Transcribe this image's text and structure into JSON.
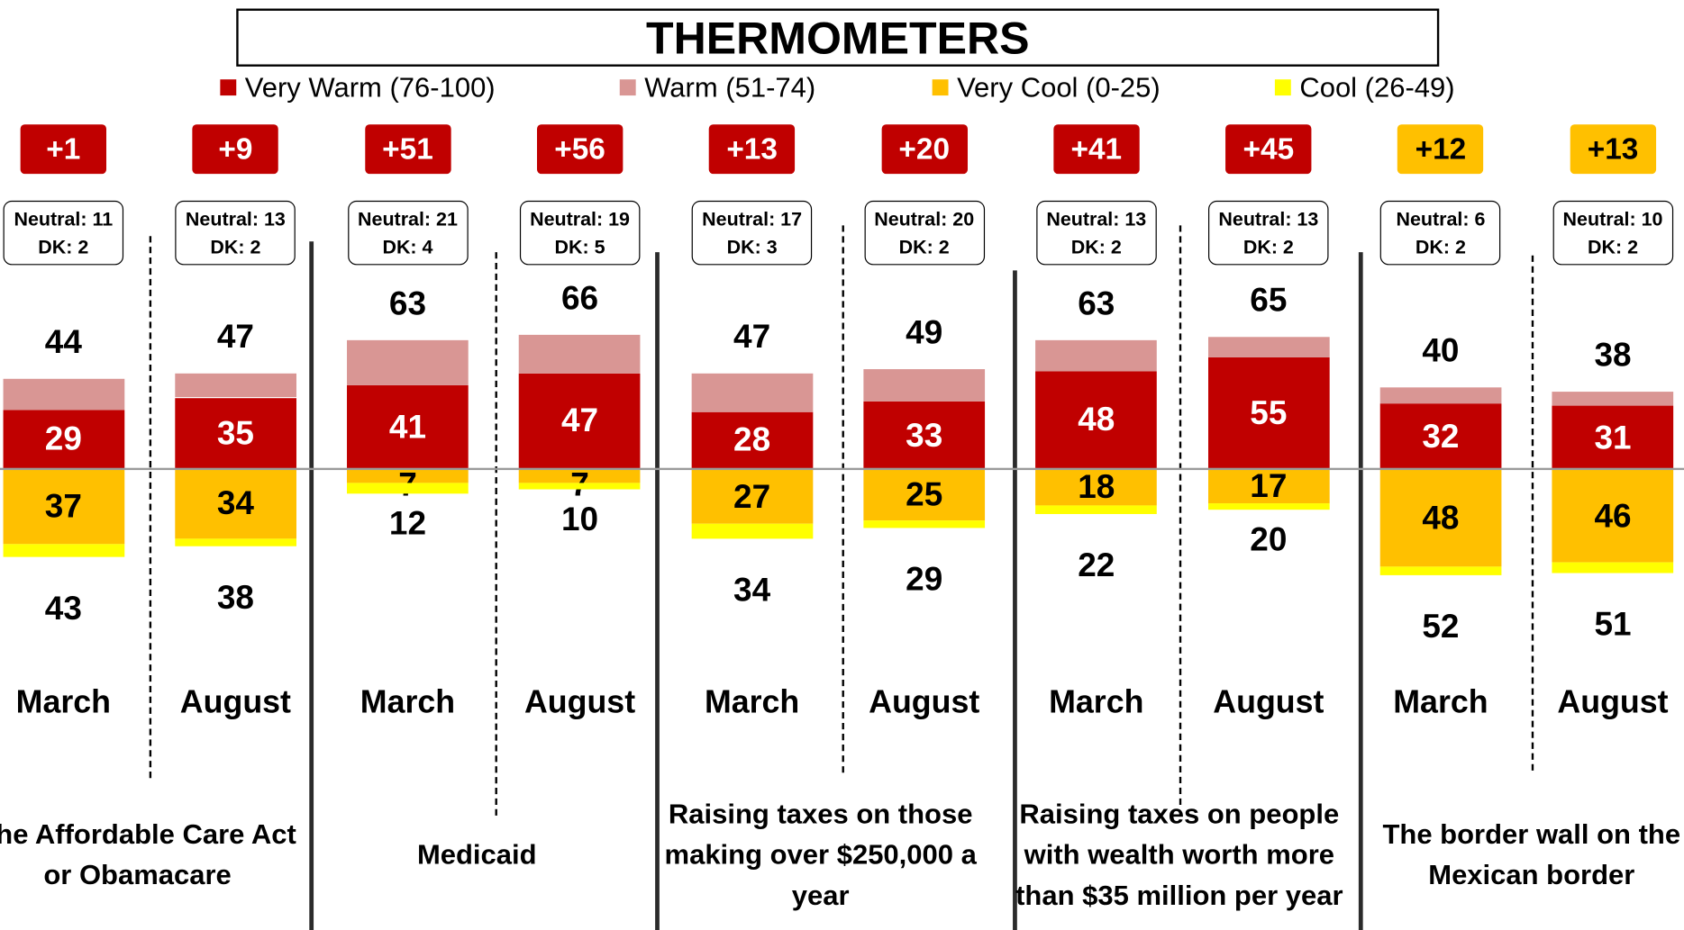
{
  "chart_data": {
    "type": "diverging_stacked_bar",
    "title": "THERMOMETERS",
    "categories": [
      "March",
      "August",
      "March",
      "August",
      "March",
      "August",
      "March",
      "August",
      "March",
      "August"
    ],
    "groups": [
      "The Affordable Care Act or Obamacare",
      "Medicaid",
      "Raising taxes on those making over $250,000 a year",
      "Raising taxes on people with wealth worth more than $35 million per year",
      "The border wall on the Mexican border"
    ],
    "series": [
      {
        "name": "Very Warm (76-100)",
        "color": "#c00000",
        "values": [
          29,
          35,
          41,
          47,
          28,
          33,
          48,
          55,
          32,
          31
        ]
      },
      {
        "name": "Warm (51-74)",
        "color": "#d99694",
        "values": [
          15,
          12,
          22,
          19,
          19,
          16,
          15,
          10,
          8,
          7
        ]
      },
      {
        "name": "Very Cool (0-25)",
        "color": "#ffc000",
        "values": [
          37,
          34,
          7,
          7,
          27,
          25,
          18,
          17,
          48,
          46
        ]
      },
      {
        "name": "Cool (26-49)",
        "color": "#ffff00",
        "values": [
          6,
          4,
          5,
          3,
          7,
          4,
          4,
          3,
          4,
          5
        ]
      }
    ],
    "warm_totals": [
      44,
      47,
      63,
      66,
      47,
      49,
      63,
      65,
      40,
      38
    ],
    "cool_totals": [
      43,
      38,
      12,
      10,
      34,
      29,
      22,
      20,
      52,
      51
    ],
    "net": [
      1,
      9,
      51,
      56,
      13,
      20,
      41,
      45,
      12,
      13
    ],
    "net_labels": [
      "+1",
      "+9",
      "+51",
      "+56",
      "+13",
      "+20",
      "+41",
      "+45",
      "+12",
      "+13"
    ],
    "net_colors": [
      "#c00000",
      "#c00000",
      "#c00000",
      "#c00000",
      "#c00000",
      "#c00000",
      "#c00000",
      "#c00000",
      "#ffc000",
      "#ffc000"
    ],
    "neutral": [
      11,
      13,
      21,
      19,
      17,
      20,
      13,
      13,
      6,
      10
    ],
    "neutral_labels": [
      "Neutral: 11",
      "Neutral: 13",
      "Neutral: 21",
      "Neutral: 19",
      "Neutral: 17",
      "Neutral: 20",
      "Neutral: 13",
      "Neutral: 13",
      "Neutral: 6",
      "Neutral: 10"
    ],
    "dk": [
      2,
      2,
      4,
      5,
      3,
      2,
      2,
      2,
      2,
      2
    ],
    "dk_labels": [
      "DK: 2",
      "DK: 2",
      "DK: 4",
      "DK: 5",
      "DK: 3",
      "DK: 2",
      "DK: 2",
      "DK: 2",
      "DK: 2",
      "DK: 2"
    ]
  }
}
